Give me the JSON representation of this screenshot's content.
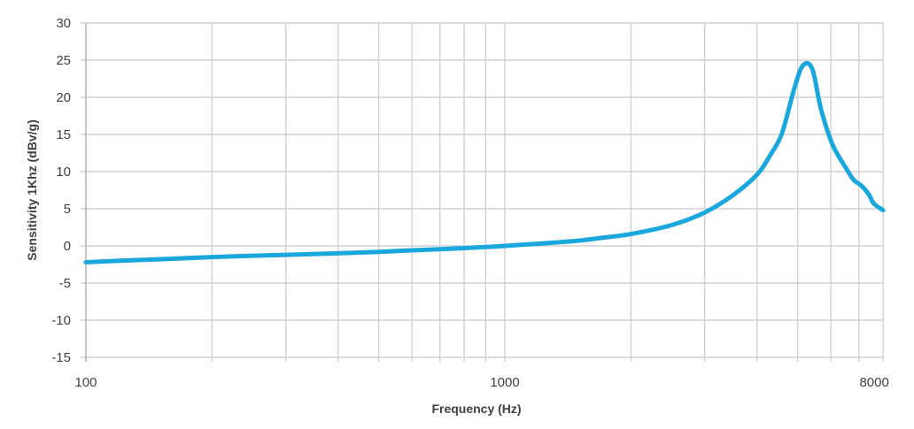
{
  "chart_data": {
    "type": "line",
    "title": "",
    "xlabel": "Frequency (Hz)",
    "ylabel": "Sensitivity 1Khz (dBv/g)",
    "x_scale": "log",
    "xlim": [
      100,
      8000
    ],
    "ylim": [
      -15,
      30
    ],
    "x_ticks": [
      "100",
      "1000",
      "8000"
    ],
    "y_ticks": [
      "30",
      "25",
      "20",
      "15",
      "10",
      "5",
      "0",
      "-5",
      "-10",
      "-15"
    ],
    "grid": true,
    "legend": "none",
    "series": [
      {
        "color": "#1AA7DD",
        "x": [
          100,
          120,
          150,
          200,
          300,
          400,
          500,
          600,
          700,
          800,
          900,
          1000,
          1200,
          1500,
          1710,
          2000,
          2500,
          3000,
          3500,
          4000,
          4300,
          4590,
          4910,
          5150,
          5420,
          5680,
          6050,
          6500,
          6800,
          7100,
          7400,
          7600,
          8000
        ],
        "y": [
          -2.2,
          -2.0,
          -1.8,
          -1.5,
          -1.2,
          -1.0,
          -0.8,
          -0.6,
          -0.45,
          -0.3,
          -0.15,
          0,
          0.3,
          0.7,
          1.1,
          1.6,
          2.8,
          4.5,
          6.8,
          9.6,
          12.2,
          15.2,
          21.2,
          24.3,
          23.8,
          18.5,
          13.7,
          10.6,
          8.9,
          8.1,
          6.9,
          5.7,
          4.8
        ]
      }
    ]
  }
}
